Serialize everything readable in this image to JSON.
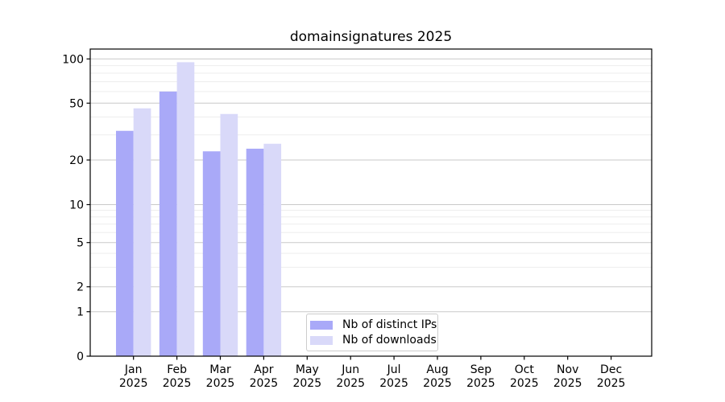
{
  "chart_data": {
    "type": "bar",
    "title": "domainsignatures 2025",
    "categories": [
      "Jan",
      "Feb",
      "Mar",
      "Apr",
      "May",
      "Jun",
      "Jul",
      "Aug",
      "Sep",
      "Oct",
      "Nov",
      "Dec"
    ],
    "category_year": "2025",
    "series": [
      {
        "name": "Nb of distinct IPs",
        "color": "#a9a9f8",
        "values": [
          32,
          60,
          23,
          24,
          null,
          null,
          null,
          null,
          null,
          null,
          null,
          null
        ]
      },
      {
        "name": "Nb of downloads",
        "color": "#d9d9f9",
        "values": [
          46,
          95,
          42,
          26,
          null,
          null,
          null,
          null,
          null,
          null,
          null,
          null
        ]
      }
    ],
    "yaxis": {
      "scale": "symlog",
      "ticks": [
        100,
        50,
        20,
        10,
        5,
        2,
        1,
        0
      ],
      "minor_ticks": [
        90,
        80,
        70,
        60,
        40,
        30,
        9,
        8,
        7,
        6,
        4,
        3
      ]
    },
    "legend_position": "lower-center-inside",
    "grid": {
      "major": true,
      "minor": true
    }
  },
  "colors": {
    "background": "#ffffff",
    "text": "#000000",
    "spine": "#000000",
    "major_grid": "#c9c9c9",
    "minor_grid": "#ededed",
    "legend_border": "#cccccc"
  }
}
